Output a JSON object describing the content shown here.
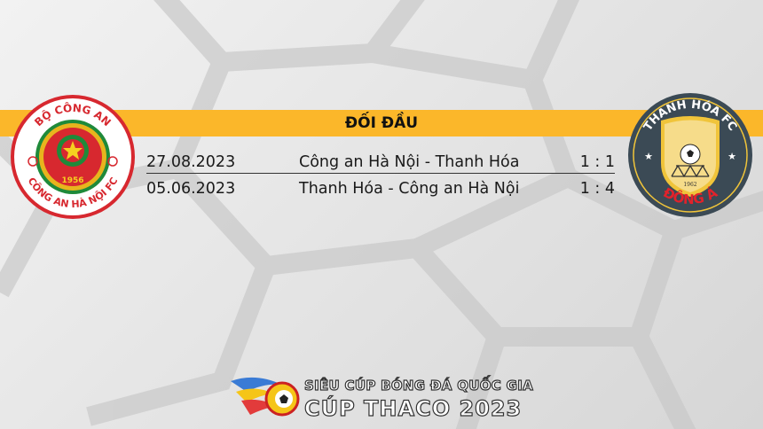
{
  "header": {
    "title": "ĐỐI ĐẦU"
  },
  "matches": [
    {
      "date": "27.08.2023",
      "fixture": "Công an Hà Nội - Thanh Hóa",
      "score": "1 : 1"
    },
    {
      "date": "05.06.2023",
      "fixture": "Thanh Hóa - Công an Hà Nội",
      "score": "1 : 4"
    }
  ],
  "home_team": {
    "logo_top": "BỘ CÔNG AN",
    "logo_bottom": "CÔNG AN HÀ NỘI FC",
    "logo_year": "1956"
  },
  "away_team": {
    "logo_top": "THANH HÓA FC",
    "logo_bottom": "ĐÔNG Á",
    "logo_year": "1962"
  },
  "footer": {
    "line1": "SIÊU CÚP BÓNG ĐÁ QUỐC GIA",
    "line2": "CÚP THACO 2023"
  },
  "colors": {
    "band": "#fbb72a",
    "home_red": "#d7282f",
    "away_navy": "#3b4a55",
    "away_gold": "#f0c43a"
  }
}
